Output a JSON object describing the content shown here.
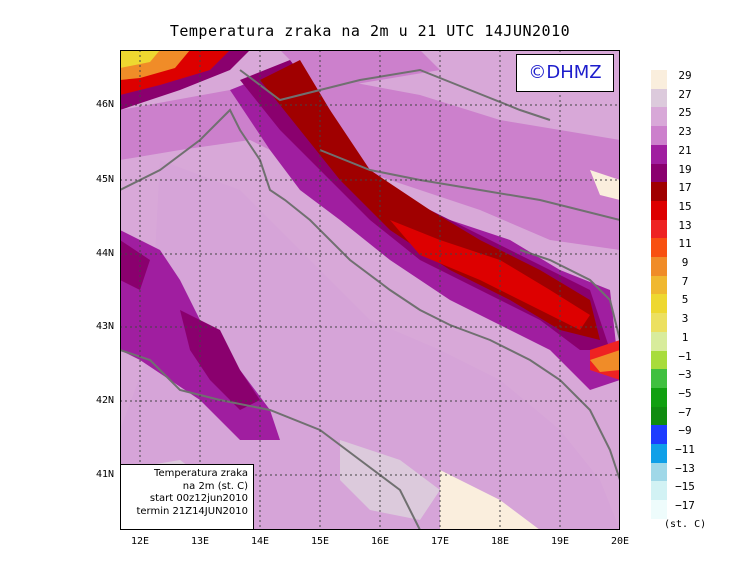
{
  "title": "Temperatura zraka na 2m u 21 UTC 14JUN2010",
  "logo": "©DHMZ",
  "info": {
    "line1": "Temperatura zraka",
    "line2": "na 2m (st. C)",
    "line3": "start 00z12jun2010",
    "line4": "termin 21Z14JUN2010"
  },
  "lat_labels": [
    "46N",
    "45N",
    "44N",
    "43N",
    "42N",
    "41N"
  ],
  "lon_labels": [
    "12E",
    "13E",
    "14E",
    "15E",
    "16E",
    "17E",
    "18E",
    "19E",
    "20E"
  ],
  "legend": {
    "labels": [
      "29",
      "27",
      "25",
      "23",
      "21",
      "19",
      "17",
      "15",
      "13",
      "11",
      "9",
      "7",
      "5",
      "3",
      "1",
      "−1",
      "−3",
      "−5",
      "−7",
      "−9",
      "−11",
      "−13",
      "−15",
      "−17"
    ],
    "colors": [
      "#faeedd",
      "#dccadc",
      "#d8a8d8",
      "#cc80cc",
      "#a01ea0",
      "#8a006e",
      "#a00000",
      "#dd0000",
      "#ee2222",
      "#f85010",
      "#f08c28",
      "#f0b830",
      "#eed830",
      "#ece060",
      "#d8ec9c",
      "#a8dc3c",
      "#40c040",
      "#10a010",
      "#108c10",
      "#1e3cff",
      "#10a0e8",
      "#a0d8e8",
      "#d2f2f4",
      "#eefcfc"
    ],
    "units": "(st. C)"
  }
}
